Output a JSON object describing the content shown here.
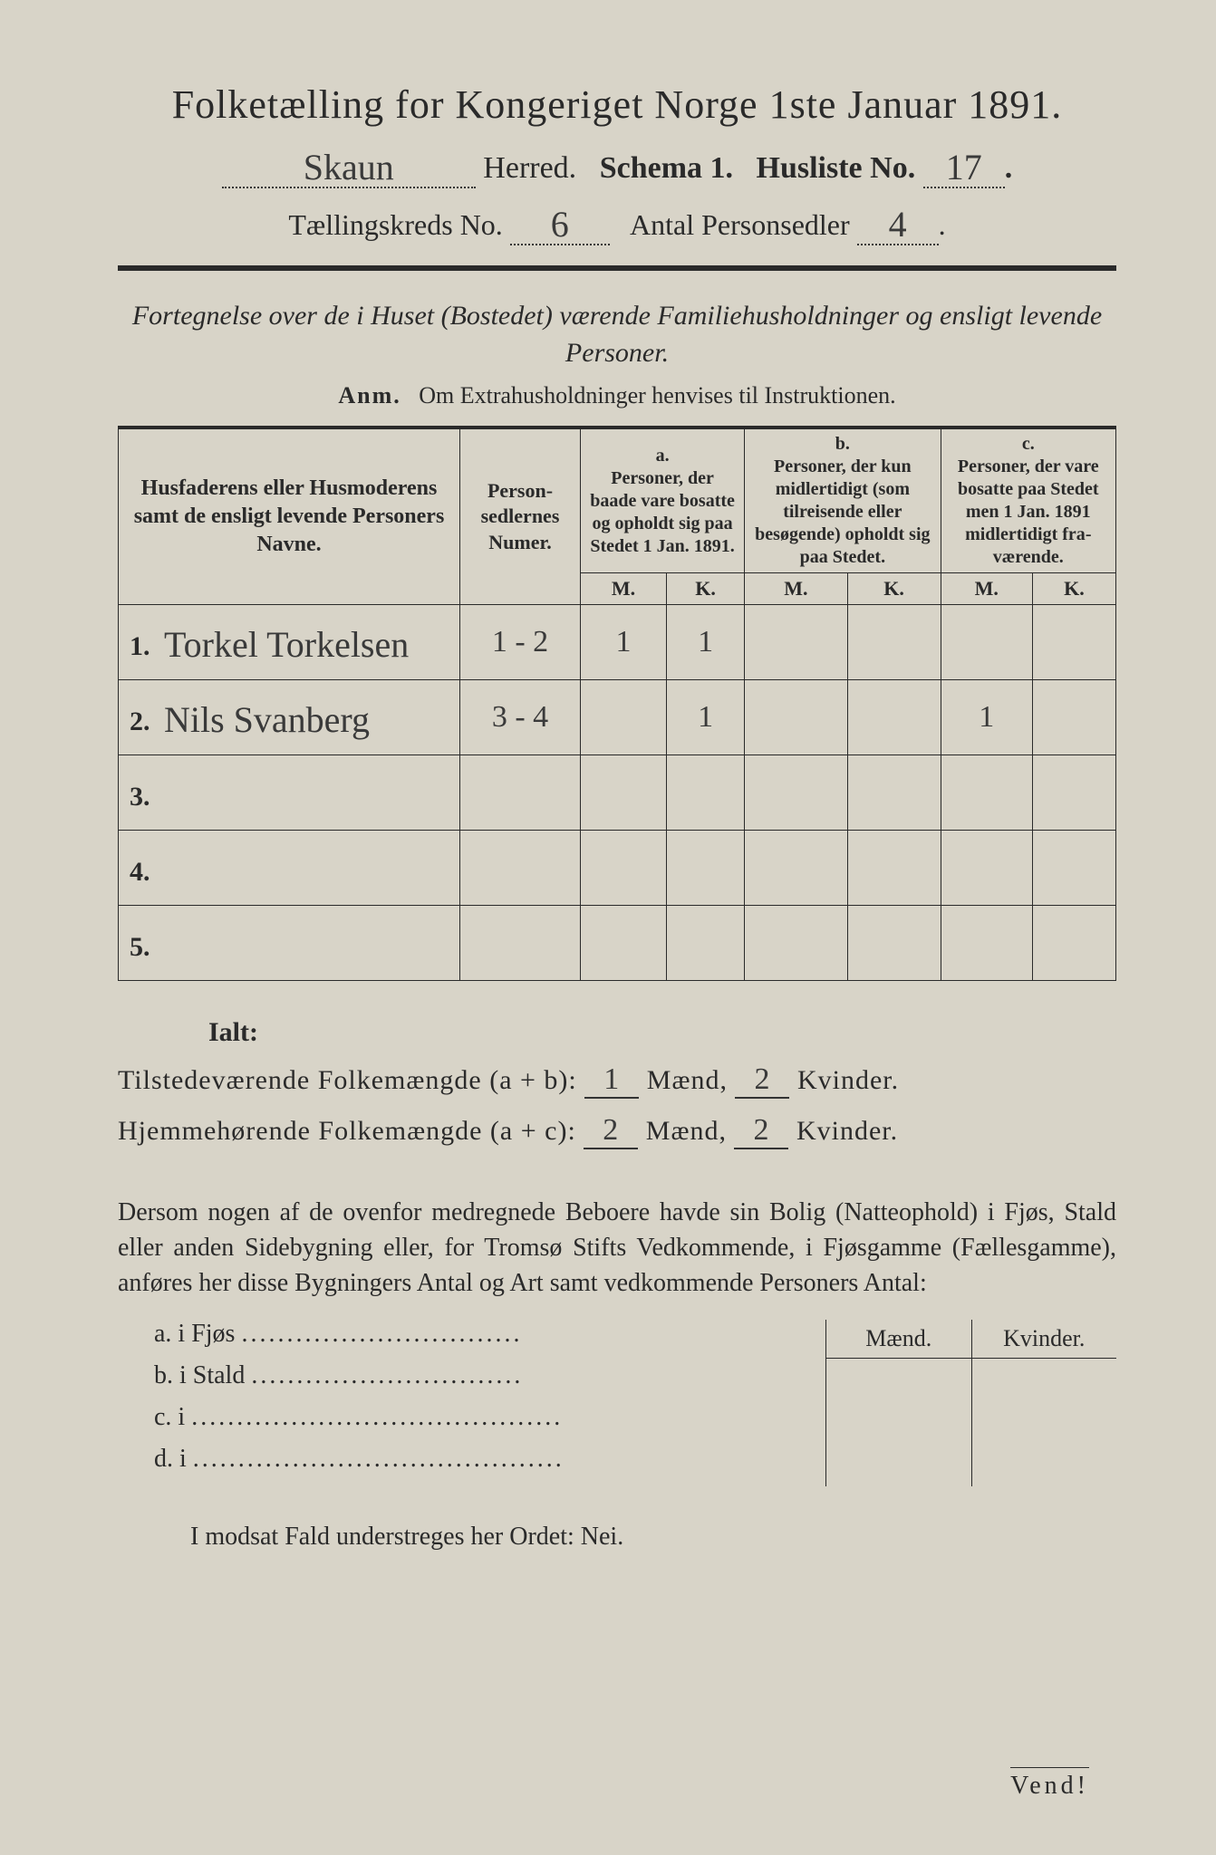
{
  "title": "Folketælling for Kongeriget Norge 1ste Januar 1891.",
  "herred_value": "Skaun",
  "herred_label": "Herred.",
  "schema_label": "Schema 1.",
  "husliste_label": "Husliste No.",
  "husliste_value": "17",
  "kreds_label": "Tællingskreds No.",
  "kreds_value": "6",
  "antal_label": "Antal Personsedler",
  "antal_value": "4",
  "fortegnelse": "Fortegnelse over de i Huset (Bostedet) værende Familiehusholdninger og ensligt levende Personer.",
  "anm_label": "Anm.",
  "anm_text": "Om Extrahusholdninger henvises til Instruktionen.",
  "col_names": "Husfaderens eller Husmode­rens samt de ensligt levende Personers Navne.",
  "col_num": "Person­sedler­nes Numer.",
  "col_a_top": "a.",
  "col_a": "Personer, der baade vare bo­satte og opholdt sig paa Stedet 1 Jan. 1891.",
  "col_b_top": "b.",
  "col_b": "Personer, der kun midler­tidigt (som tilreisende eller besøgende) opholdt sig paa Stedet.",
  "col_c_top": "c.",
  "col_c": "Personer, der vare bosatte paa Stedet men 1 Jan. 1891 midler­tidigt fra­værende.",
  "m_label": "M.",
  "k_label": "K.",
  "rows": [
    {
      "idx": "1.",
      "name": "Torkel Torkelsen",
      "num": "1 - 2",
      "a_m": "1",
      "a_k": "1",
      "b_m": "",
      "b_k": "",
      "c_m": "",
      "c_k": ""
    },
    {
      "idx": "2.",
      "name": "Nils Svanberg",
      "num": "3 - 4",
      "a_m": "",
      "a_k": "1",
      "b_m": "",
      "b_k": "",
      "c_m": "1",
      "c_k": ""
    },
    {
      "idx": "3.",
      "name": "",
      "num": "",
      "a_m": "",
      "a_k": "",
      "b_m": "",
      "b_k": "",
      "c_m": "",
      "c_k": ""
    },
    {
      "idx": "4.",
      "name": "",
      "num": "",
      "a_m": "",
      "a_k": "",
      "b_m": "",
      "b_k": "",
      "c_m": "",
      "c_k": ""
    },
    {
      "idx": "5.",
      "name": "",
      "num": "",
      "a_m": "",
      "a_k": "",
      "b_m": "",
      "b_k": "",
      "c_m": "",
      "c_k": ""
    }
  ],
  "ialt": "Ialt:",
  "sum1_label": "Tilstedeværende Folkemængde (a + b):",
  "sum1_m": "1",
  "sum1_k": "2",
  "sum2_label": "Hjemmehørende Folkemængde (a + c):",
  "sum2_m": "2",
  "sum2_k": "2",
  "maend": "Mænd,",
  "kvinder": "Kvinder.",
  "para": "Dersom nogen af de ovenfor medregnede Beboere havde sin Bolig (Natte­ophold) i Fjøs, Stald eller anden Sidebygning eller, for Tromsø Stifts Ved­kommende, i Fjøsgamme (Fællesgamme), anføres her disse Bygningers Antal og Art samt vedkommende Personers Antal:",
  "bl_a": "a.  i      Fjøs",
  "bl_b": "b.  i      Stald",
  "bl_c": "c.  i",
  "bl_d": "d.  i",
  "maend_hdr": "Mænd.",
  "kvinder_hdr": "Kvinder.",
  "nei": "I modsat Fald understreges her Ordet: Nei.",
  "vend": "Vend!",
  "colors": {
    "paper": "#d8d4c8",
    "ink": "#2a2a2a",
    "hand": "#3a3a3a"
  }
}
